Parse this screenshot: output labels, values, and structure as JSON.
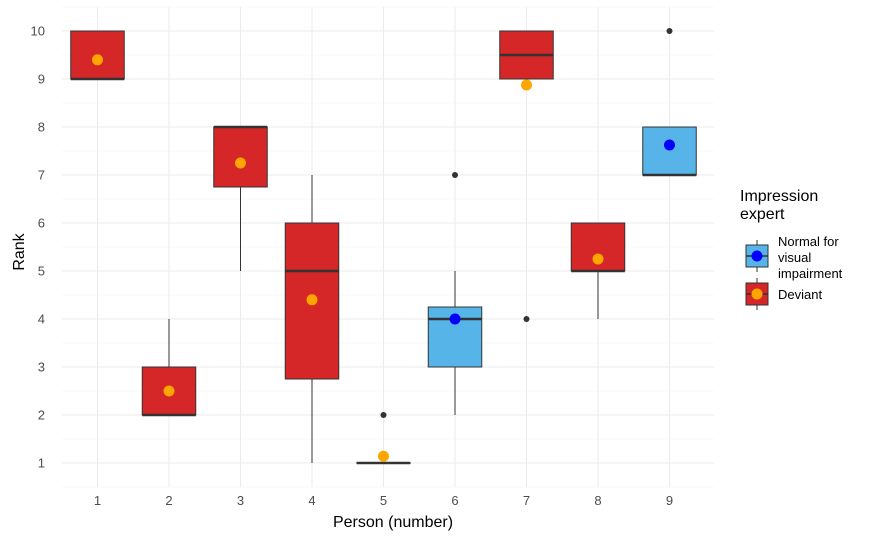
{
  "chart_data": {
    "type": "boxplot",
    "xlabel": "Person (number)",
    "ylabel": "Rank",
    "categories": [
      "1",
      "2",
      "3",
      "4",
      "5",
      "6",
      "7",
      "8",
      "9"
    ],
    "yticks": [
      1,
      2,
      3,
      4,
      5,
      6,
      7,
      8,
      9,
      10
    ],
    "ylim": [
      0.5,
      10.5
    ],
    "legend": {
      "title": [
        "Impression",
        " expert"
      ],
      "position": "right",
      "entries": [
        {
          "group": "normal",
          "label": [
            "Normal for",
            " visual",
            " impairment"
          ],
          "fill": "#56B4E9",
          "mean_color": "#0000FF"
        },
        {
          "group": "deviant",
          "label": [
            "Deviant"
          ],
          "fill": "#D62728",
          "mean_color": "#FFA500"
        }
      ]
    },
    "boxes": [
      {
        "x": "1",
        "group": "deviant",
        "q1": 9,
        "median": 9,
        "q3": 10,
        "whisker_low": 9,
        "whisker_high": 10,
        "outliers": [],
        "mean": 9.4
      },
      {
        "x": "2",
        "group": "deviant",
        "q1": 2,
        "median": 2,
        "q3": 3,
        "whisker_low": 2,
        "whisker_high": 4,
        "outliers": [],
        "mean": 2.5
      },
      {
        "x": "3",
        "group": "deviant",
        "q1": 6.75,
        "median": 8,
        "q3": 8,
        "whisker_low": 5,
        "whisker_high": 8,
        "outliers": [],
        "mean": 7.25
      },
      {
        "x": "4",
        "group": "deviant",
        "q1": 2.75,
        "median": 5,
        "q3": 6,
        "whisker_low": 1,
        "whisker_high": 7,
        "outliers": [],
        "mean": 4.4
      },
      {
        "x": "5",
        "group": "deviant",
        "q1": 1,
        "median": 1,
        "q3": 1,
        "whisker_low": 1,
        "whisker_high": 1,
        "outliers": [
          2
        ],
        "mean": 1.14
      },
      {
        "x": "6",
        "group": "normal",
        "q1": 3,
        "median": 4,
        "q3": 4.25,
        "whisker_low": 2,
        "whisker_high": 5,
        "outliers": [
          7
        ],
        "mean": 4.0
      },
      {
        "x": "7",
        "group": "deviant",
        "q1": 9,
        "median": 9.5,
        "q3": 10,
        "whisker_low": 9,
        "whisker_high": 10,
        "outliers": [
          4
        ],
        "mean": 8.875
      },
      {
        "x": "8",
        "group": "deviant",
        "q1": 5,
        "median": 5,
        "q3": 6,
        "whisker_low": 4,
        "whisker_high": 6,
        "outliers": [],
        "mean": 5.25
      },
      {
        "x": "9",
        "group": "normal",
        "q1": 7,
        "median": 7,
        "q3": 8,
        "whisker_low": 7,
        "whisker_high": 8,
        "outliers": [
          10
        ],
        "mean": 7.625
      }
    ]
  }
}
